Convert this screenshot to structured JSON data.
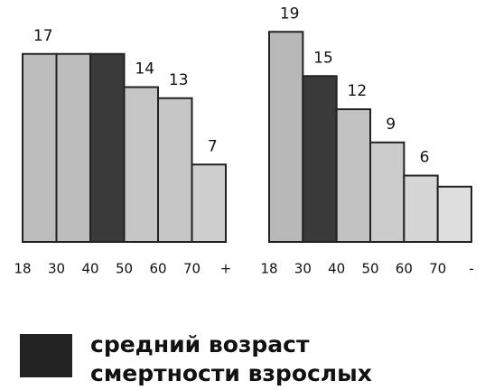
{
  "chart_data": [
    {
      "type": "bar",
      "values": [
        17,
        17,
        17,
        14,
        13,
        7
      ],
      "value_labels": [
        17,
        null,
        null,
        14,
        13,
        7
      ],
      "colors": [
        "#bdbdbd",
        "#bdbdbd",
        "#3a3a3a",
        "#c6c6c6",
        "#c6c6c6",
        "#cfcfcf"
      ],
      "bin_labels": [
        "18",
        "30",
        "40",
        "50",
        "60",
        "70",
        "+"
      ]
    },
    {
      "type": "bar",
      "values": [
        19,
        15,
        12,
        9,
        6,
        5
      ],
      "value_labels": [
        19,
        15,
        12,
        9,
        6,
        null
      ],
      "colors": [
        "#b8b8b8",
        "#3a3a3a",
        "#c2c2c2",
        "#cbcbcb",
        "#d6d6d6",
        "#dedede"
      ],
      "bin_labels": [
        "18",
        "30",
        "40",
        "50",
        "60",
        "70",
        "-"
      ]
    }
  ],
  "legend": {
    "color": "#222",
    "lines": [
      "средний возраст",
      "смертности взрослых"
    ]
  }
}
